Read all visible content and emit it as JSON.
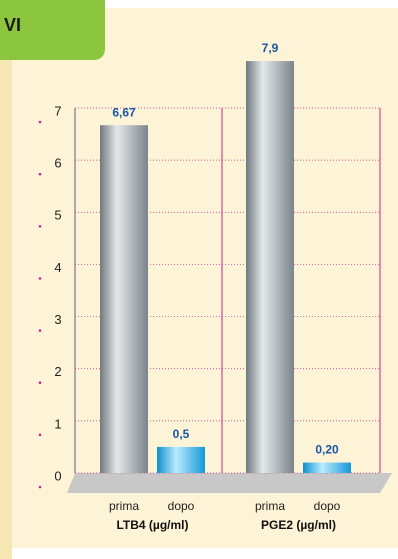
{
  "header": {
    "tab": "VI"
  },
  "chart_data": {
    "type": "bar",
    "categories": [
      "LTB4 (µg/ml)",
      "PGE2 (µg/ml)"
    ],
    "series": [
      {
        "name": "prima",
        "color": "#9aa2a8",
        "values": [
          6.67,
          7.9
        ],
        "value_labels": [
          "6,67",
          "7,9"
        ]
      },
      {
        "name": "dopo",
        "color": "#29aee6",
        "values": [
          0.5,
          0.2
        ],
        "value_labels": [
          "0,5",
          "0,20"
        ]
      }
    ],
    "ylim": [
      0,
      7
    ],
    "yticks": [
      0,
      1,
      2,
      3,
      4,
      5,
      6,
      7
    ],
    "grid": true
  }
}
